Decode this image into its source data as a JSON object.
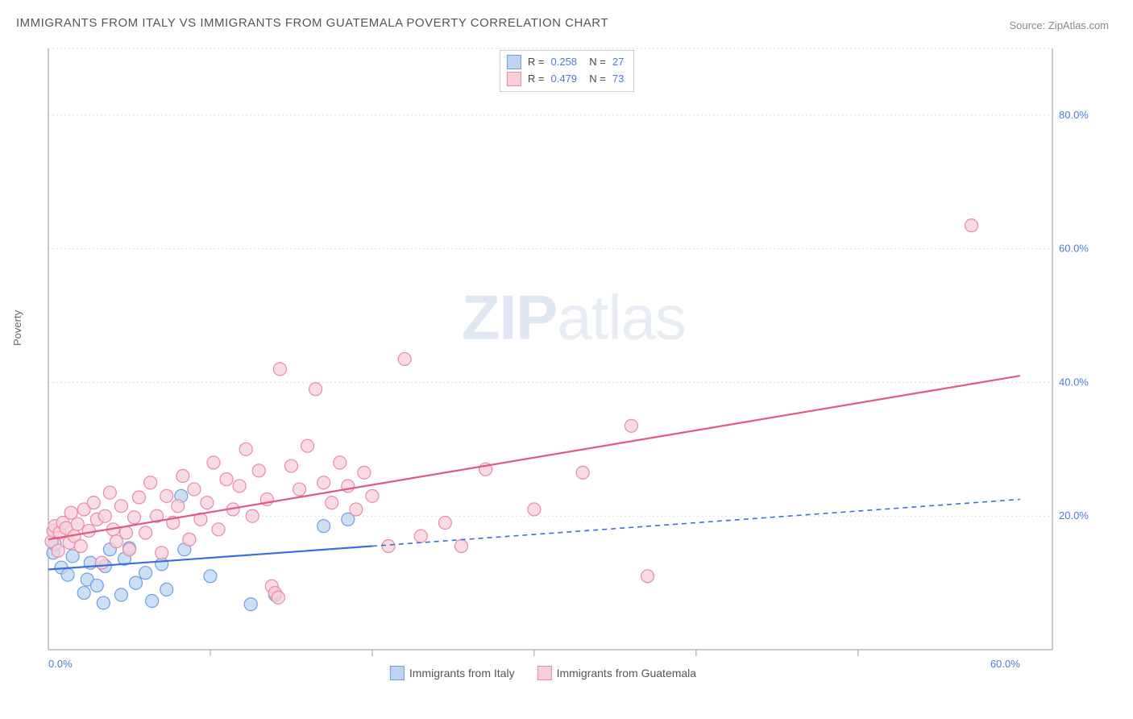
{
  "title": "IMMIGRANTS FROM ITALY VS IMMIGRANTS FROM GUATEMALA POVERTY CORRELATION CHART",
  "source_label": "Source: ZipAtlas.com",
  "ylabel": "Poverty",
  "watermark": {
    "left": "ZIP",
    "right": "atlas"
  },
  "chart": {
    "type": "scatter",
    "xlim": [
      0,
      62
    ],
    "ylim": [
      0,
      90
    ],
    "x_ticks_labeled": [
      0,
      60
    ],
    "x_ticks_minor": [
      10,
      20,
      30,
      40,
      50
    ],
    "y_gridlines": [
      20,
      40,
      60,
      80
    ],
    "x_tick_fmt": "{v}.0%",
    "y_tick_fmt": "{v}.0%",
    "background_color": "#ffffff",
    "grid_color": "#bfbfbf",
    "axis_color": "#999999",
    "marker_radius": 8,
    "marker_stroke_width": 1.2,
    "series": [
      {
        "name": "Immigrants from Italy",
        "fill": "#bcd4f0",
        "stroke": "#6f9fe3",
        "line_color": "#3a6fd8",
        "line_solid_until_x": 20,
        "trend": {
          "x0": 0,
          "y0": 12,
          "x1": 60,
          "y1": 22.5
        },
        "R": "0.258",
        "N": "27",
        "points": [
          [
            0.3,
            14.5
          ],
          [
            0.4,
            15.8
          ],
          [
            0.8,
            12.3
          ],
          [
            1.2,
            11.2
          ],
          [
            1.5,
            14.0
          ],
          [
            2.2,
            8.5
          ],
          [
            2.4,
            10.5
          ],
          [
            2.6,
            13.0
          ],
          [
            3.0,
            9.6
          ],
          [
            3.4,
            7.0
          ],
          [
            3.5,
            12.5
          ],
          [
            3.8,
            15.0
          ],
          [
            4.5,
            8.2
          ],
          [
            4.7,
            13.6
          ],
          [
            5.0,
            15.2
          ],
          [
            5.4,
            10.0
          ],
          [
            6.0,
            11.5
          ],
          [
            6.4,
            7.3
          ],
          [
            7.0,
            12.8
          ],
          [
            7.3,
            9.0
          ],
          [
            8.2,
            23.0
          ],
          [
            8.4,
            15.0
          ],
          [
            10.0,
            11.0
          ],
          [
            12.5,
            6.8
          ],
          [
            14.0,
            8.2
          ],
          [
            17.0,
            18.5
          ],
          [
            18.5,
            19.5
          ]
        ]
      },
      {
        "name": "Immigrants from Guatemala",
        "fill": "#f6cfd9",
        "stroke": "#e98aa6",
        "line_color": "#e05a84",
        "line_solid_until_x": 60,
        "trend": {
          "x0": 0,
          "y0": 16.5,
          "x1": 60,
          "y1": 41
        },
        "R": "0.479",
        "N": "73",
        "points": [
          [
            0.2,
            16.2
          ],
          [
            0.3,
            17.8
          ],
          [
            0.4,
            18.5
          ],
          [
            0.6,
            14.8
          ],
          [
            0.7,
            17.5
          ],
          [
            0.9,
            19.0
          ],
          [
            1.1,
            18.2
          ],
          [
            1.3,
            16.0
          ],
          [
            1.4,
            20.5
          ],
          [
            1.6,
            17.0
          ],
          [
            1.8,
            18.8
          ],
          [
            2.0,
            15.5
          ],
          [
            2.2,
            21.0
          ],
          [
            2.5,
            17.8
          ],
          [
            2.8,
            22.0
          ],
          [
            3.0,
            19.5
          ],
          [
            3.3,
            13.0
          ],
          [
            3.5,
            20.0
          ],
          [
            3.8,
            23.5
          ],
          [
            4.0,
            18.0
          ],
          [
            4.2,
            16.2
          ],
          [
            4.5,
            21.5
          ],
          [
            4.8,
            17.5
          ],
          [
            5.0,
            15.0
          ],
          [
            5.3,
            19.8
          ],
          [
            5.6,
            22.8
          ],
          [
            6.0,
            17.5
          ],
          [
            6.3,
            25.0
          ],
          [
            6.7,
            20.0
          ],
          [
            7.0,
            14.5
          ],
          [
            7.3,
            23.0
          ],
          [
            7.7,
            19.0
          ],
          [
            8.0,
            21.5
          ],
          [
            8.3,
            26.0
          ],
          [
            8.7,
            16.5
          ],
          [
            9.0,
            24.0
          ],
          [
            9.4,
            19.5
          ],
          [
            9.8,
            22.0
          ],
          [
            10.2,
            28.0
          ],
          [
            10.5,
            18.0
          ],
          [
            11.0,
            25.5
          ],
          [
            11.4,
            21.0
          ],
          [
            11.8,
            24.5
          ],
          [
            12.2,
            30.0
          ],
          [
            12.6,
            20.0
          ],
          [
            13.0,
            26.8
          ],
          [
            13.5,
            22.5
          ],
          [
            13.8,
            9.5
          ],
          [
            14.0,
            8.5
          ],
          [
            14.2,
            7.8
          ],
          [
            14.3,
            42.0
          ],
          [
            15.0,
            27.5
          ],
          [
            15.5,
            24.0
          ],
          [
            16.0,
            30.5
          ],
          [
            16.5,
            39.0
          ],
          [
            17.0,
            25.0
          ],
          [
            17.5,
            22.0
          ],
          [
            18.0,
            28.0
          ],
          [
            18.5,
            24.5
          ],
          [
            19.0,
            21.0
          ],
          [
            19.5,
            26.5
          ],
          [
            20.0,
            23.0
          ],
          [
            21.0,
            15.5
          ],
          [
            22.0,
            43.5
          ],
          [
            23.0,
            17.0
          ],
          [
            24.5,
            19.0
          ],
          [
            25.5,
            15.5
          ],
          [
            27.0,
            27.0
          ],
          [
            30.0,
            21.0
          ],
          [
            33.0,
            26.5
          ],
          [
            36.0,
            33.5
          ],
          [
            37.0,
            11.0
          ],
          [
            57.0,
            63.5
          ]
        ]
      }
    ]
  },
  "legend_bottom": [
    {
      "label": "Immigrants from Italy",
      "fill": "#bcd4f0",
      "stroke": "#6f9fe3"
    },
    {
      "label": "Immigrants from Guatemala",
      "fill": "#f6cfd9",
      "stroke": "#e98aa6"
    }
  ]
}
